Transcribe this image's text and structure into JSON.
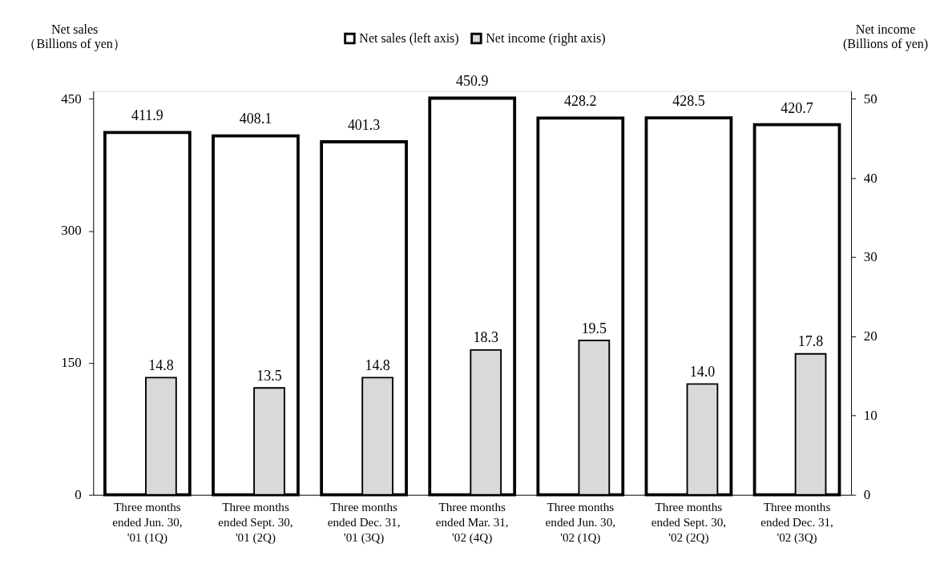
{
  "chart_data": {
    "type": "bar",
    "categories": [
      "Three months ended Jun. 30, '01 (1Q)",
      "Three months ended Sept. 30, '01 (2Q)",
      "Three months ended Dec. 31, '01 (3Q)",
      "Three months ended Mar. 31, '02 (4Q)",
      "Three months ended Jun. 30, '02 (1Q)",
      "Three months ended Sept. 30, '02 (2Q)",
      "Three months ended Dec. 31, '02 (3Q)"
    ],
    "series": [
      {
        "name": "Net sales (left axis)",
        "color": "#ffffff",
        "values": [
          411.9,
          408.1,
          401.3,
          450.9,
          428.2,
          428.5,
          420.7
        ],
        "value_labels": [
          "411.9",
          "408.1",
          "401.3",
          "450.9",
          "428.2",
          "428.5",
          "420.7"
        ]
      },
      {
        "name": "Net income (right axis)",
        "color": "#d9d9d9",
        "axis": "y2",
        "values": [
          14.8,
          13.5,
          14.8,
          18.3,
          19.5,
          14.0,
          17.8
        ],
        "value_labels": [
          "14.8",
          "13.5",
          "14.8",
          "18.3",
          "19.5",
          "14.0",
          "17.8"
        ]
      }
    ],
    "ylabel": "Net sales（Billions of yen）",
    "y2label": "Net income (Billions of yen)",
    "ylim": [
      0,
      459
    ],
    "yticks": [
      0,
      150,
      300,
      450
    ],
    "y2lim": [
      0,
      51
    ],
    "y2ticks": [
      0,
      10,
      20,
      30,
      40,
      50
    ],
    "legend": "top",
    "grid": false
  }
}
